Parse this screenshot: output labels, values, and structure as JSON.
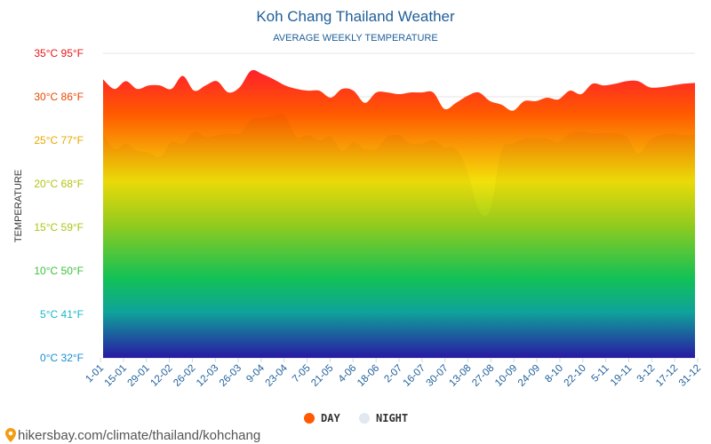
{
  "colors": {
    "day_legend": "#ff5a00",
    "night_legend": "#e1e8f0",
    "title": "#1f5f99"
  },
  "legend": {
    "day": "DAY",
    "night": "NIGHT",
    "position": "bottom-center"
  },
  "source_text": "hikersbay.com/climate/thailand/kohchang",
  "icons": {
    "source_icon": "map-pin-icon"
  },
  "chart_data": {
    "type": "area",
    "title": "Koh Chang Thailand Weather",
    "subtitle": "AVERAGE WEEKLY TEMPERATURE",
    "ylabel": "TEMPERATURE",
    "ylim": [
      0,
      35
    ],
    "grid": true,
    "y_ticks": [
      {
        "value": 0,
        "label": "0°C 32°F",
        "color": "#1a8fd0"
      },
      {
        "value": 5,
        "label": "5°C 41°F",
        "color": "#16b8c8"
      },
      {
        "value": 10,
        "label": "10°C 50°F",
        "color": "#3cc13c"
      },
      {
        "value": 15,
        "label": "15°C 59°F",
        "color": "#a8c814"
      },
      {
        "value": 20,
        "label": "20°C 68°F",
        "color": "#b5c214"
      },
      {
        "value": 25,
        "label": "25°C 77°F",
        "color": "#e8a800"
      },
      {
        "value": 30,
        "label": "30°C 86°F",
        "color": "#e84800"
      },
      {
        "value": 35,
        "label": "35°C 95°F",
        "color": "#e81818"
      }
    ],
    "x_tick_labels": [
      "1-01",
      "15-01",
      "29-01",
      "12-02",
      "26-02",
      "12-03",
      "26-03",
      "9-04",
      "23-04",
      "7-05",
      "21-05",
      "4-06",
      "18-06",
      "2-07",
      "16-07",
      "30-07",
      "13-08",
      "27-08",
      "10-09",
      "24-09",
      "8-10",
      "22-10",
      "5-11",
      "19-11",
      "3-12",
      "17-12",
      "31-12"
    ],
    "weeks": [
      "1-01",
      "8-01",
      "15-01",
      "22-01",
      "29-01",
      "5-02",
      "12-02",
      "19-02",
      "26-02",
      "5-03",
      "12-03",
      "19-03",
      "26-03",
      "2-04",
      "9-04",
      "16-04",
      "23-04",
      "30-04",
      "7-05",
      "14-05",
      "21-05",
      "28-05",
      "4-06",
      "11-06",
      "18-06",
      "25-06",
      "2-07",
      "9-07",
      "16-07",
      "23-07",
      "30-07",
      "6-08",
      "13-08",
      "20-08",
      "27-08",
      "3-09",
      "10-09",
      "17-09",
      "24-09",
      "1-10",
      "8-10",
      "15-10",
      "22-10",
      "29-10",
      "5-11",
      "12-11",
      "19-11",
      "26-11",
      "3-12",
      "10-12",
      "17-12",
      "24-12",
      "31-12"
    ],
    "series": [
      {
        "name": "DAY",
        "values": [
          32.0,
          30.9,
          31.8,
          30.9,
          31.3,
          31.3,
          30.9,
          32.4,
          30.7,
          31.3,
          31.8,
          30.5,
          31.1,
          33.0,
          32.6,
          32.0,
          31.3,
          30.9,
          30.7,
          30.7,
          29.9,
          30.9,
          30.7,
          29.3,
          30.5,
          30.5,
          30.3,
          30.5,
          30.5,
          30.5,
          28.6,
          29.3,
          30.1,
          30.5,
          29.5,
          29.1,
          28.4,
          29.5,
          29.5,
          29.9,
          29.7,
          30.7,
          30.3,
          31.5,
          31.3,
          31.5,
          31.8,
          31.8,
          31.1,
          31.1,
          31.3,
          31.5,
          31.6
        ]
      },
      {
        "name": "NIGHT",
        "values": [
          25.8,
          24.0,
          24.6,
          23.8,
          23.6,
          23.1,
          24.8,
          24.6,
          26.0,
          25.4,
          25.6,
          25.8,
          25.8,
          27.4,
          27.6,
          27.8,
          27.8,
          25.4,
          25.6,
          25.0,
          25.4,
          23.8,
          24.8,
          24.0,
          24.0,
          25.4,
          25.6,
          24.6,
          24.6,
          25.0,
          24.2,
          24.0,
          21.5,
          17.0,
          17.0,
          23.8,
          24.6,
          25.2,
          25.2,
          25.2,
          24.8,
          25.8,
          26.0,
          25.8,
          25.8,
          25.8,
          25.4,
          23.5,
          25.0,
          25.6,
          25.8,
          25.6,
          25.6
        ]
      }
    ]
  }
}
